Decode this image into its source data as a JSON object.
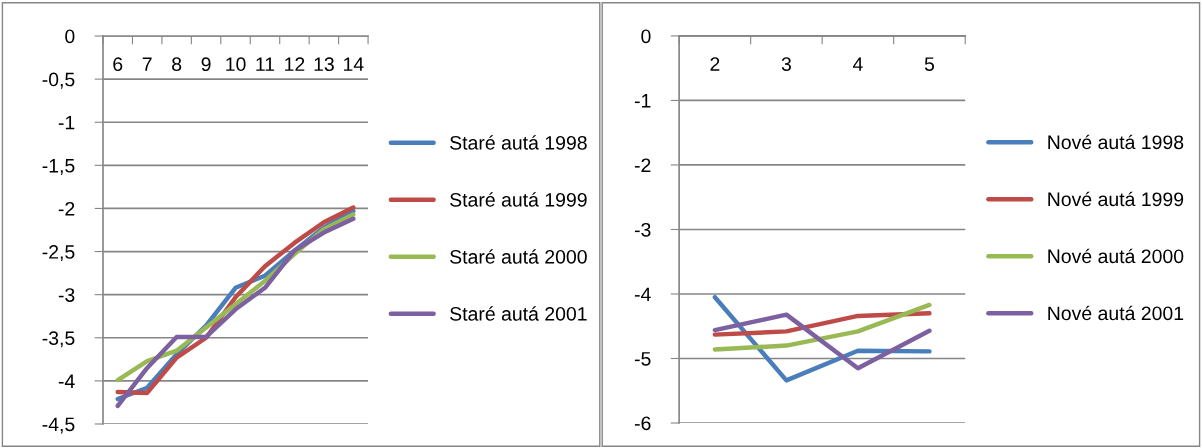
{
  "chart_data": [
    {
      "type": "line",
      "categories": [
        "6",
        "7",
        "8",
        "9",
        "10",
        "11",
        "12",
        "13",
        "14"
      ],
      "series": [
        {
          "name": "Staré autá 1998",
          "color": "#4a7ebb",
          "values": [
            -4.21,
            -4.08,
            -3.69,
            -3.36,
            -2.92,
            -2.78,
            -2.49,
            -2.22,
            -2.03
          ]
        },
        {
          "name": "Staré autá 1999",
          "color": "#be4b48",
          "values": [
            -4.13,
            -4.14,
            -3.73,
            -3.5,
            -3.03,
            -2.67,
            -2.4,
            -2.16,
            -1.99
          ]
        },
        {
          "name": "Staré autá 2000",
          "color": "#98b954",
          "values": [
            -3.99,
            -3.77,
            -3.65,
            -3.38,
            -3.11,
            -2.84,
            -2.53,
            -2.24,
            -2.07
          ]
        },
        {
          "name": "Staré autá 2001",
          "color": "#7d60a0",
          "values": [
            -4.29,
            -3.85,
            -3.49,
            -3.49,
            -3.17,
            -2.92,
            -2.49,
            -2.28,
            -2.12
          ]
        }
      ],
      "ylim": [
        -4.5,
        0
      ],
      "yticks": [
        0,
        {
          "value": -0.5,
          "label": "-0,5"
        },
        -1,
        {
          "value": -1.5,
          "label": "-1,5"
        },
        -2,
        {
          "value": -2.5,
          "label": "-2,5"
        },
        -3,
        {
          "value": -3.5,
          "label": "-3,5"
        },
        -4,
        {
          "value": -4.5,
          "label": "-4,5"
        }
      ],
      "grid": "y",
      "legend": "right",
      "marker": "none",
      "line_style": "solid"
    },
    {
      "type": "line",
      "categories": [
        "2",
        "3",
        "4",
        "5"
      ],
      "series": [
        {
          "name": "Nové autá 1998",
          "color": "#4a7ebb",
          "values": [
            -4.05,
            -5.34,
            -4.88,
            -4.89
          ]
        },
        {
          "name": "Nové autá 1999",
          "color": "#be4b48",
          "values": [
            -4.63,
            -4.58,
            -4.34,
            -4.3
          ]
        },
        {
          "name": "Nové autá 2000",
          "color": "#98b954",
          "values": [
            -4.86,
            -4.8,
            -4.58,
            -4.17
          ]
        },
        {
          "name": "Nové autá 2001",
          "color": "#7d60a0",
          "values": [
            -4.56,
            -4.32,
            -5.15,
            -4.57
          ]
        }
      ],
      "ylim": [
        -6,
        0
      ],
      "yticks": [
        0,
        -1,
        -2,
        -3,
        -4,
        -5,
        -6
      ],
      "grid": "y",
      "legend": "right",
      "marker": "none",
      "line_style": "solid"
    }
  ]
}
